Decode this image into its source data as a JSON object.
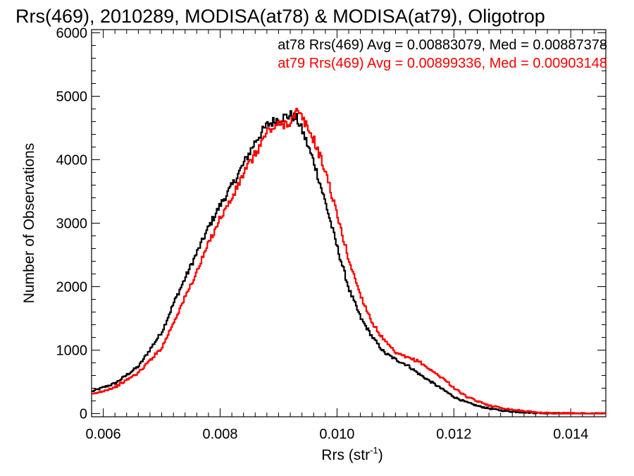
{
  "chart_data": {
    "type": "line",
    "step": true,
    "title": "Rrs(469), 2010289, MODISA(at78) & MODISA(at79), Oligotrop",
    "xlabel_base": "Rrs (str",
    "xlabel_sup": "-1",
    "xlabel_close": ")",
    "ylabel": "Number of Observations",
    "xlim": [
      0.0058,
      0.0146
    ],
    "ylim": [
      -50,
      6050
    ],
    "x_ticks": [
      {
        "value": 0.006,
        "label": "0.006"
      },
      {
        "value": 0.008,
        "label": "0.008"
      },
      {
        "value": 0.01,
        "label": "0.010"
      },
      {
        "value": 0.012,
        "label": "0.012"
      },
      {
        "value": 0.014,
        "label": "0.014"
      }
    ],
    "y_ticks": [
      {
        "value": 0,
        "label": "0"
      },
      {
        "value": 1000,
        "label": "1000"
      },
      {
        "value": 2000,
        "label": "2000"
      },
      {
        "value": 3000,
        "label": "3000"
      },
      {
        "value": 4000,
        "label": "4000"
      },
      {
        "value": 5000,
        "label": "5000"
      },
      {
        "value": 6000,
        "label": "6000"
      }
    ],
    "legend_placement": "top-right",
    "series": [
      {
        "label_text": "at78 Rrs(469) Avg = 0.00883079, Med = 0.00887378",
        "color": "#000000",
        "x": [
          0.0058,
          0.0062,
          0.0066,
          0.007,
          0.0072,
          0.0074,
          0.0076,
          0.0078,
          0.008,
          0.0082,
          0.0084,
          0.0086,
          0.0088,
          0.009,
          0.0092,
          0.0093,
          0.0094,
          0.0096,
          0.0098,
          0.01,
          0.0102,
          0.0104,
          0.0106,
          0.0108,
          0.011,
          0.0112,
          0.0114,
          0.0116,
          0.0118,
          0.012,
          0.0122,
          0.0124,
          0.0126,
          0.0128,
          0.013,
          0.0132,
          0.0134,
          0.0136,
          0.014,
          0.0146
        ],
        "y": [
          350,
          480,
          750,
          1300,
          1750,
          2150,
          2550,
          2950,
          3300,
          3600,
          3950,
          4300,
          4550,
          4650,
          4700,
          4650,
          4450,
          3950,
          3300,
          2600,
          1950,
          1500,
          1200,
          960,
          850,
          760,
          620,
          500,
          380,
          260,
          180,
          120,
          80,
          50,
          30,
          20,
          10,
          5,
          2,
          0
        ]
      },
      {
        "label_text": "at79 Rrs(469) Avg = 0.00899336, Med = 0.00903148",
        "color": "#ff0000",
        "x": [
          0.0058,
          0.0062,
          0.0066,
          0.007,
          0.0072,
          0.0074,
          0.0076,
          0.0078,
          0.008,
          0.0082,
          0.0084,
          0.0086,
          0.0088,
          0.009,
          0.0092,
          0.0093,
          0.0094,
          0.0096,
          0.0098,
          0.01,
          0.0102,
          0.0104,
          0.0106,
          0.0108,
          0.011,
          0.0112,
          0.0114,
          0.0116,
          0.0118,
          0.012,
          0.0122,
          0.0124,
          0.0126,
          0.0128,
          0.013,
          0.0132,
          0.0134,
          0.0136,
          0.014,
          0.0146
        ],
        "y": [
          300,
          420,
          650,
          1050,
          1450,
          1850,
          2250,
          2700,
          3100,
          3400,
          3800,
          4100,
          4450,
          4550,
          4600,
          4750,
          4650,
          4300,
          3800,
          3100,
          2400,
          1850,
          1420,
          1150,
          950,
          880,
          820,
          680,
          560,
          400,
          270,
          190,
          130,
          90,
          60,
          40,
          20,
          10,
          3,
          0
        ]
      }
    ]
  }
}
